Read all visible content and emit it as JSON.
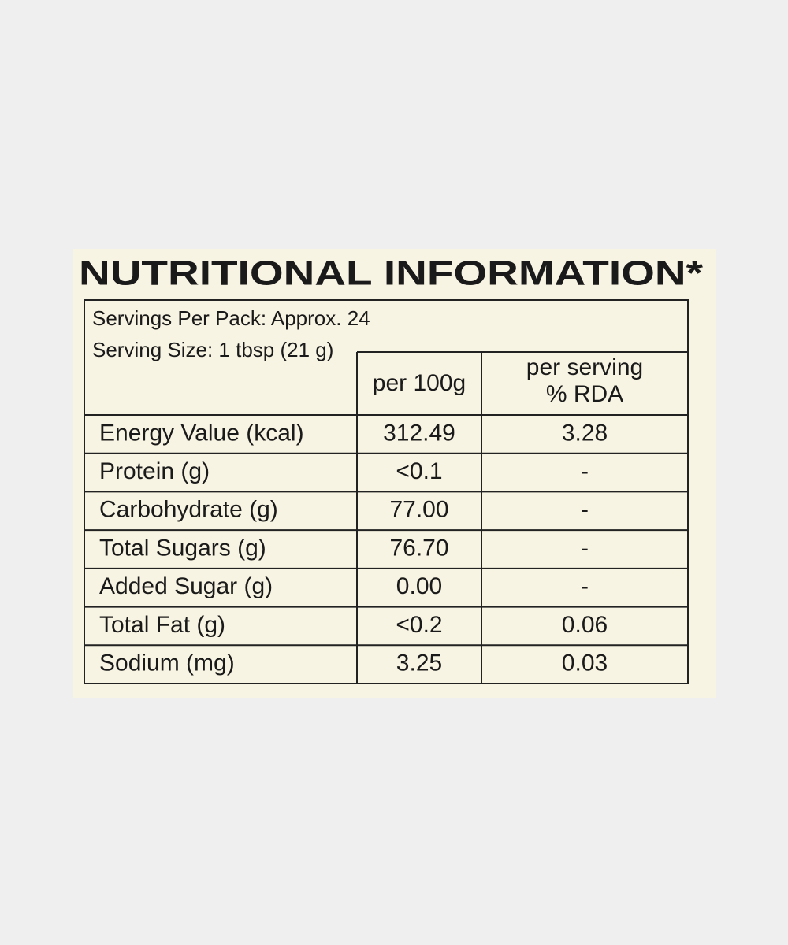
{
  "label": {
    "title": "NUTRITIONAL INFORMATION*",
    "servings_per_pack": "Servings Per Pack: Approx. 24",
    "serving_size": "Serving Size: 1 tbsp (21 g)",
    "table": {
      "header": [
        "per 100g",
        "per serving",
        "% RDA"
      ],
      "rows": [
        [
          "Energy Value (kcal)",
          "312.49",
          "3.28"
        ],
        [
          "Protein (g)",
          "<0.1",
          "-"
        ],
        [
          "Carbohydrate (g)",
          "77.00",
          "-"
        ],
        [
          "Total Sugars (g)",
          "76.70",
          "-"
        ],
        [
          "Added Sugar (g)",
          "0.00",
          "-"
        ],
        [
          "Total Fat (g)",
          "<0.2",
          "0.06"
        ],
        [
          "Sodium (mg)",
          "3.25",
          "0.03"
        ]
      ]
    }
  }
}
